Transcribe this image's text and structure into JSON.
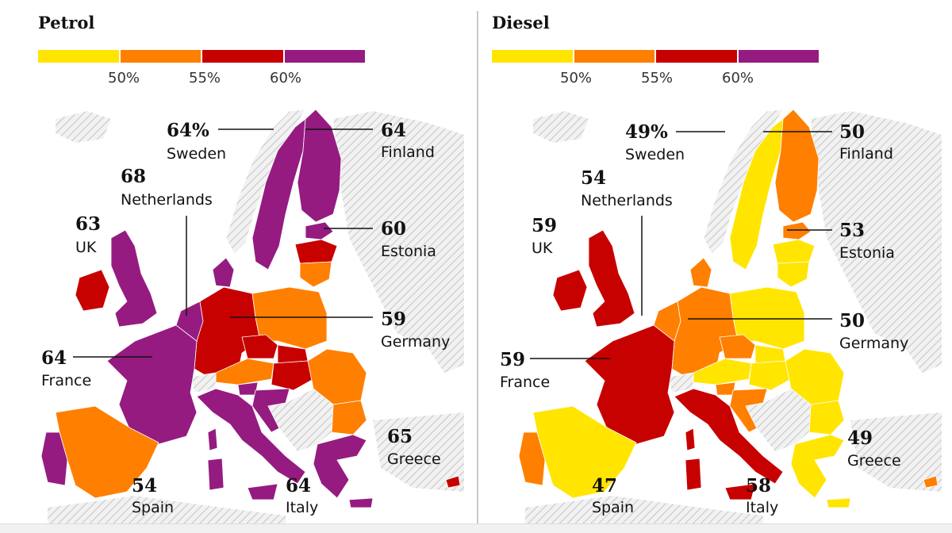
{
  "colors": {
    "bin1": "#ffe500",
    "bin2": "#ff7f00",
    "bin3": "#c70000",
    "bin4": "#951b81",
    "hatch": "#d8d8d8"
  },
  "legend_ticks": [
    "50%",
    "55%",
    "60%"
  ],
  "panels": [
    {
      "id": "petrol",
      "title": "Petrol",
      "labels": {
        "sweden": {
          "value": "64%",
          "name": "Sweden"
        },
        "finland": {
          "value": "64",
          "name": "Finland"
        },
        "netherlands": {
          "value": "68",
          "name": "Netherlands"
        },
        "uk": {
          "value": "63",
          "name": "UK"
        },
        "estonia": {
          "value": "60",
          "name": "Estonia"
        },
        "germany": {
          "value": "59",
          "name": "Germany"
        },
        "france": {
          "value": "64",
          "name": "France"
        },
        "greece": {
          "value": "65",
          "name": "Greece"
        },
        "spain": {
          "value": "54",
          "name": "Spain"
        },
        "italy": {
          "value": "64",
          "name": "Italy"
        }
      },
      "bins": {
        "uk": 4,
        "ireland": 3,
        "france": 4,
        "spain": 2,
        "portugal": 4,
        "italy": 4,
        "germany": 3,
        "benelux": 4,
        "denmark": 4,
        "sweden": 4,
        "finland": 4,
        "norway": 0,
        "estonia": 4,
        "latvia": 3,
        "lithuania": 2,
        "poland": 2,
        "czechia": 3,
        "austria": 2,
        "hungary": 3,
        "slovakia": 3,
        "romania": 2,
        "bulgaria": 2,
        "greece": 4,
        "croatia": 4,
        "slovenia": 4,
        "balkans": 0,
        "switzerland": 0,
        "cyprus": 3,
        "corsica": 4,
        "sardinia": 4,
        "sicily": 4
      }
    },
    {
      "id": "diesel",
      "title": "Diesel",
      "labels": {
        "sweden": {
          "value": "49%",
          "name": "Sweden"
        },
        "finland": {
          "value": "50",
          "name": "Finland"
        },
        "netherlands": {
          "value": "54",
          "name": "Netherlands"
        },
        "uk": {
          "value": "59",
          "name": "UK"
        },
        "estonia": {
          "value": "53",
          "name": "Estonia"
        },
        "germany": {
          "value": "50",
          "name": "Germany"
        },
        "france": {
          "value": "59",
          "name": "France"
        },
        "greece": {
          "value": "49",
          "name": "Greece"
        },
        "spain": {
          "value": "47",
          "name": "Spain"
        },
        "italy": {
          "value": "58",
          "name": "Italy"
        }
      },
      "bins": {
        "uk": 3,
        "ireland": 3,
        "france": 3,
        "spain": 1,
        "portugal": 2,
        "italy": 3,
        "germany": 2,
        "benelux": 2,
        "denmark": 2,
        "sweden": 1,
        "finland": 2,
        "norway": 0,
        "estonia": 2,
        "latvia": 1,
        "lithuania": 1,
        "poland": 1,
        "czechia": 2,
        "austria": 1,
        "hungary": 1,
        "slovakia": 1,
        "romania": 1,
        "bulgaria": 1,
        "greece": 1,
        "croatia": 2,
        "slovenia": 2,
        "balkans": 0,
        "switzerland": 0,
        "cyprus": 2,
        "corsica": 3,
        "sardinia": 3,
        "sicily": 3
      }
    }
  ]
}
